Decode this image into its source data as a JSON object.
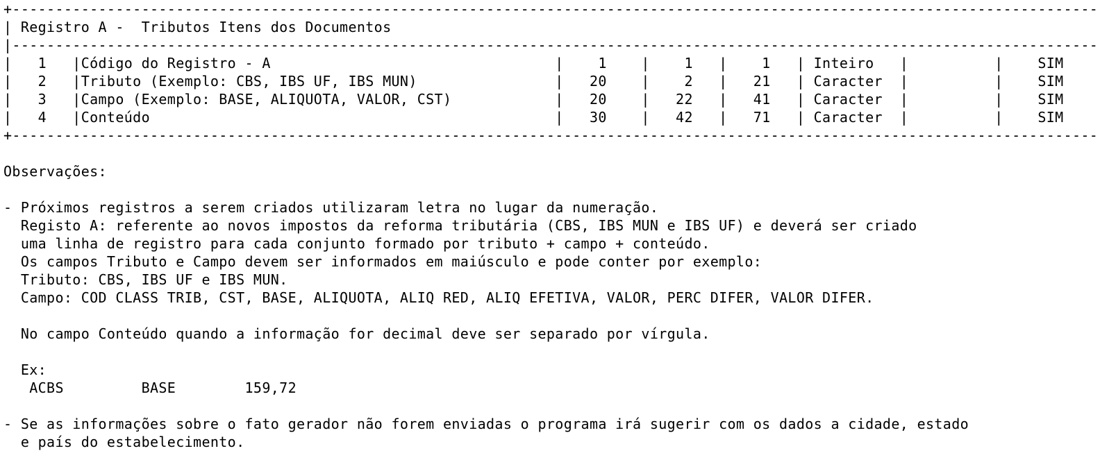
{
  "document": {
    "record_table": {
      "title": "Registro A -  Tributos Itens dos Documentos",
      "rows": [
        {
          "num": "1",
          "description": "Código do Registro - A",
          "size": "1",
          "start": "1",
          "end": "1",
          "type": "Inteiro",
          "extra": "",
          "required": "SIM"
        },
        {
          "num": "2",
          "description": "Tributo (Exemplo: CBS, IBS UF, IBS MUN)",
          "size": "20",
          "start": "2",
          "end": "21",
          "type": "Caracter",
          "extra": "",
          "required": "SIM"
        },
        {
          "num": "3",
          "description": "Campo (Exemplo: BASE, ALIQUOTA, VALOR, CST)",
          "size": "20",
          "start": "22",
          "end": "41",
          "type": "Caracter",
          "extra": "",
          "required": "SIM"
        },
        {
          "num": "4",
          "description": "Conteúdo",
          "size": "30",
          "start": "42",
          "end": "71",
          "type": "Caracter",
          "extra": "",
          "required": "SIM"
        }
      ]
    },
    "observations": {
      "heading": "Observações:",
      "notes_block_1": [
        "- Próximos registros a serem criados utilizaram letra no lugar da numeração.",
        "  Registo A: referente ao novos impostos da reforma tributária (CBS, IBS MUN e IBS UF) e deverá ser criado",
        "  uma linha de registro para cada conjunto formado por tributo + campo + conteúdo.",
        "  Os campos Tributo e Campo devem ser informados em maiúsculo e pode conter por exemplo:",
        "  Tributo: CBS, IBS UF e IBS MUN.",
        "  Campo: COD CLASS TRIB, CST, BASE, ALIQUOTA, ALIQ RED, ALIQ EFETIVA, VALOR, PERC DIFER, VALOR DIFER."
      ],
      "decimal_note": "  No campo Conteúdo quando a informação for decimal deve ser separado por vírgula.",
      "example": {
        "label": "  Ex:",
        "tributo": "ACBS",
        "campo": "BASE",
        "conteudo": "159,72"
      },
      "notes_block_2": [
        "- Se as informações sobre o fato gerador não forem enviadas o programa irá sugerir com os dados a cidade, estado",
        "  e país do estabelecimento."
      ]
    }
  }
}
